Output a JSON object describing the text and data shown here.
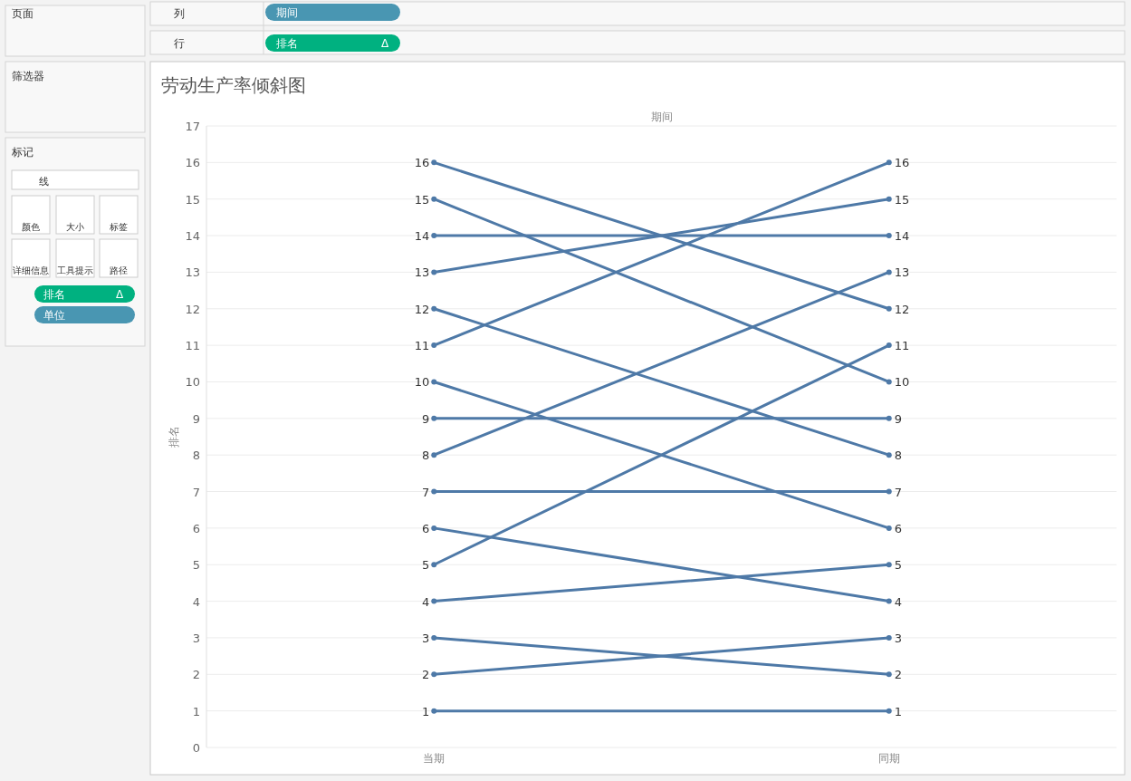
{
  "chart_data": [
    {
      "type": "line",
      "title": "劳动生产率倾斜图",
      "xlabel": "期间",
      "ylabel": "排名",
      "categories": [
        "当期",
        "同期"
      ],
      "ylim": [
        0,
        17
      ],
      "yticks": [
        0,
        1,
        2,
        3,
        4,
        5,
        6,
        7,
        8,
        9,
        10,
        11,
        12,
        13,
        14,
        15,
        16,
        17
      ],
      "grid": "y",
      "marker": "circle",
      "line_style": "solid",
      "data_labels": true,
      "series": [
        {
          "color": "#4e79a7",
          "values": [
            16,
            12
          ]
        },
        {
          "color": "#4e79a7",
          "values": [
            15,
            10
          ]
        },
        {
          "color": "#4e79a7",
          "values": [
            14,
            14
          ]
        },
        {
          "color": "#4e79a7",
          "values": [
            13,
            15
          ]
        },
        {
          "color": "#4e79a7",
          "values": [
            12,
            8
          ]
        },
        {
          "color": "#4e79a7",
          "values": [
            11,
            16
          ]
        },
        {
          "color": "#4e79a7",
          "values": [
            10,
            6
          ]
        },
        {
          "color": "#4e79a7",
          "values": [
            9,
            9
          ]
        },
        {
          "color": "#4e79a7",
          "values": [
            8,
            13
          ]
        },
        {
          "color": "#4e79a7",
          "values": [
            7,
            7
          ]
        },
        {
          "color": "#4e79a7",
          "values": [
            6,
            4
          ]
        },
        {
          "color": "#4e79a7",
          "values": [
            5,
            11
          ]
        },
        {
          "color": "#4e79a7",
          "values": [
            4,
            5
          ]
        },
        {
          "color": "#4e79a7",
          "values": [
            3,
            2
          ]
        },
        {
          "color": "#4e79a7",
          "values": [
            2,
            3
          ]
        },
        {
          "color": "#4e79a7",
          "values": [
            1,
            1
          ]
        }
      ]
    },
    {
      "type": "other",
      "annotations": [
        "页面",
        "筛选器",
        "标记",
        "线",
        "颜色",
        "大小",
        "标签",
        "详细信息",
        "工具提示",
        "路径",
        "排名",
        "Δ",
        "单位",
        "列",
        "期间",
        "行",
        "排名",
        "Δ"
      ]
    }
  ]
}
